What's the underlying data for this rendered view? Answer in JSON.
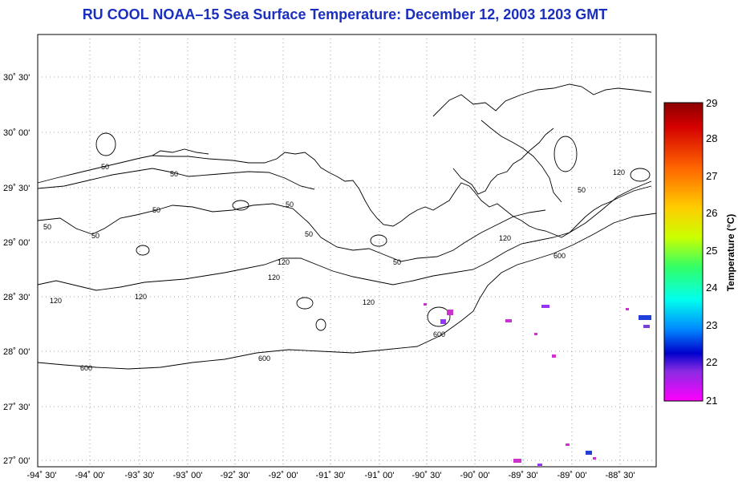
{
  "title": "RU COOL  NOAA–15  Sea Surface Temperature:  December 12, 2003 1203 GMT",
  "lat_labels": [
    "30˚ 30'",
    "30˚ 00'",
    "29˚ 30'",
    "29˚ 00'",
    "28˚ 30'",
    "28˚ 00'",
    "27˚ 30'",
    "27˚ 00'"
  ],
  "lon_labels": [
    "-94˚ 30'",
    "-94˚ 00'",
    "-93˚ 30'",
    "-93˚ 00'",
    "-92˚ 30'",
    "-92˚ 00'",
    "-91˚ 30'",
    "-91˚ 00'",
    "-90˚ 30'",
    "-90˚ 00'",
    "-89˚ 30'",
    "-89˚ 00'",
    "-88˚ 30'"
  ],
  "contour_labels": {
    "c50a": "50",
    "c50b": "50",
    "c50c": "50",
    "c50d": "50",
    "c50e": "50",
    "c50f": "50",
    "c50g": "50",
    "c50h": "50",
    "c50i": "50",
    "c120a": "120",
    "c120b": "120",
    "c120c": "120",
    "c120d": "120",
    "c120e": "120",
    "c120f": "120",
    "c120g": "120",
    "c600a": "600",
    "c600b": "600",
    "c600c": "600",
    "c600d": "600"
  },
  "colorbar": {
    "title": "Temperature (°C)",
    "ticks": [
      "29",
      "28",
      "27",
      "26",
      "25",
      "24",
      "23",
      "22",
      "21"
    ],
    "colors": [
      "#8b0000",
      "#d40000",
      "#ff6600",
      "#ffcc00",
      "#ccff00",
      "#33ff66",
      "#00ffee",
      "#0088ff",
      "#0000cc",
      "#8a2be2",
      "#ff00ff"
    ]
  }
}
